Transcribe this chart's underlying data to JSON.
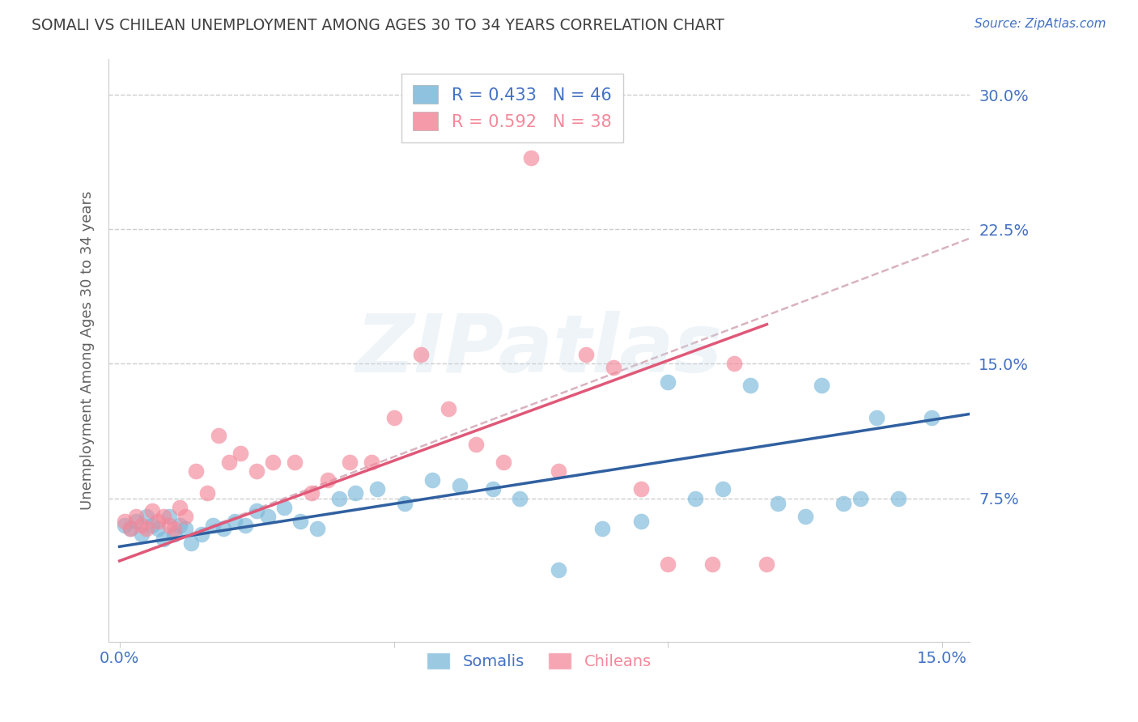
{
  "title": "SOMALI VS CHILEAN UNEMPLOYMENT AMONG AGES 30 TO 34 YEARS CORRELATION CHART",
  "source": "Source: ZipAtlas.com",
  "ylabel": "Unemployment Among Ages 30 to 34 years",
  "ytick_labels": [
    "7.5%",
    "15.0%",
    "22.5%",
    "30.0%"
  ],
  "ytick_vals": [
    0.075,
    0.15,
    0.225,
    0.3
  ],
  "xlim": [
    -0.002,
    0.155
  ],
  "ylim": [
    -0.005,
    0.32
  ],
  "somali_color": "#7ab8d9",
  "chilean_color": "#f4889a",
  "somali_line_color": "#3060a0",
  "chilean_line_color": "#e05878",
  "dashed_line_color": "#d0a0b0",
  "somali_R": 0.433,
  "somali_N": 46,
  "chilean_R": 0.592,
  "chilean_N": 38,
  "legend_label_somali": "Somalis",
  "legend_label_chilean": "Chileans",
  "watermark": "ZIPatlas",
  "somali_scatter_x": [
    0.001,
    0.002,
    0.003,
    0.004,
    0.005,
    0.006,
    0.007,
    0.008,
    0.009,
    0.01,
    0.011,
    0.012,
    0.013,
    0.015,
    0.017,
    0.019,
    0.021,
    0.023,
    0.025,
    0.027,
    0.03,
    0.033,
    0.036,
    0.04,
    0.043,
    0.047,
    0.052,
    0.057,
    0.062,
    0.068,
    0.073,
    0.08,
    0.088,
    0.095,
    0.1,
    0.105,
    0.11,
    0.115,
    0.12,
    0.125,
    0.128,
    0.132,
    0.135,
    0.138,
    0.142,
    0.148
  ],
  "somali_scatter_y": [
    0.06,
    0.058,
    0.062,
    0.055,
    0.065,
    0.06,
    0.058,
    0.052,
    0.065,
    0.055,
    0.06,
    0.058,
    0.05,
    0.055,
    0.06,
    0.058,
    0.062,
    0.06,
    0.068,
    0.065,
    0.07,
    0.062,
    0.058,
    0.075,
    0.078,
    0.08,
    0.072,
    0.085,
    0.082,
    0.08,
    0.075,
    0.035,
    0.058,
    0.062,
    0.14,
    0.075,
    0.08,
    0.138,
    0.072,
    0.065,
    0.138,
    0.072,
    0.075,
    0.12,
    0.075,
    0.12
  ],
  "chilean_scatter_x": [
    0.001,
    0.002,
    0.003,
    0.004,
    0.005,
    0.006,
    0.007,
    0.008,
    0.009,
    0.01,
    0.011,
    0.012,
    0.014,
    0.016,
    0.018,
    0.02,
    0.022,
    0.025,
    0.028,
    0.032,
    0.035,
    0.038,
    0.042,
    0.046,
    0.05,
    0.055,
    0.06,
    0.065,
    0.07,
    0.075,
    0.08,
    0.085,
    0.09,
    0.095,
    0.1,
    0.108,
    0.112,
    0.118
  ],
  "chilean_scatter_y": [
    0.062,
    0.058,
    0.065,
    0.06,
    0.058,
    0.068,
    0.062,
    0.065,
    0.06,
    0.058,
    0.07,
    0.065,
    0.09,
    0.078,
    0.11,
    0.095,
    0.1,
    0.09,
    0.095,
    0.095,
    0.078,
    0.085,
    0.095,
    0.095,
    0.12,
    0.155,
    0.125,
    0.105,
    0.095,
    0.265,
    0.09,
    0.155,
    0.148,
    0.08,
    0.038,
    0.038,
    0.15,
    0.038
  ],
  "somali_trend_x": [
    0.0,
    0.155
  ],
  "somali_trend_y": [
    0.048,
    0.122
  ],
  "chilean_trend_x": [
    0.0,
    0.118
  ],
  "chilean_trend_y": [
    0.04,
    0.172
  ],
  "dashed_trend_x": [
    0.0,
    0.155
  ],
  "dashed_trend_y": [
    0.04,
    0.22
  ],
  "background_color": "#ffffff",
  "grid_color": "#cccccc",
  "tick_color": "#4472c4",
  "title_color": "#404040",
  "ylabel_color": "#606060"
}
